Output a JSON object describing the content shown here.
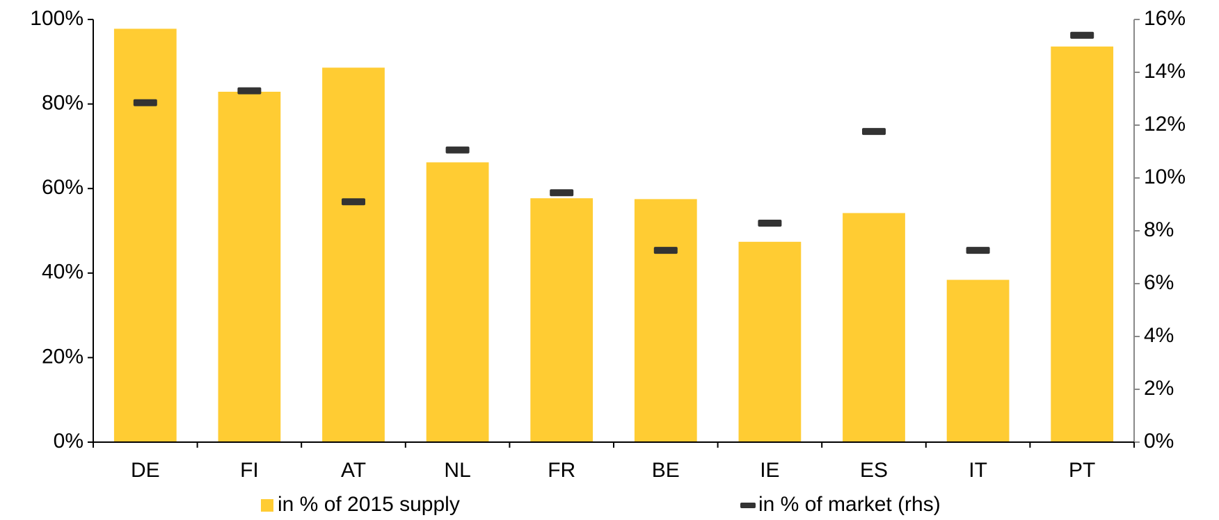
{
  "chart_data": {
    "type": "bar",
    "categories": [
      "DE",
      "FI",
      "AT",
      "NL",
      "FR",
      "BE",
      "IE",
      "ES",
      "IT",
      "PT"
    ],
    "series": [
      {
        "name": "in % of 2015 supply",
        "color": "#ffcc33",
        "values": [
          97.8,
          82.9,
          88.6,
          66.2,
          57.7,
          57.5,
          47.4,
          54.2,
          38.4,
          93.6
        ]
      },
      {
        "name": "in % of market (rhs)",
        "color": "#333333",
        "axis": "y2",
        "values": [
          12.85,
          13.3,
          9.1,
          11.06,
          9.44,
          7.26,
          8.29,
          11.76,
          7.26,
          15.4
        ]
      }
    ],
    "ylim": [
      0,
      100
    ],
    "yticks": [
      {
        "value": 0,
        "label": "0%"
      },
      {
        "value": 20,
        "label": "20%"
      },
      {
        "value": 40,
        "label": "40%"
      },
      {
        "value": 60,
        "label": "60%"
      },
      {
        "value": 80,
        "label": "80%"
      },
      {
        "value": 100,
        "label": "100%"
      }
    ],
    "y2lim": [
      0,
      16
    ],
    "y2ticks": [
      {
        "value": 0,
        "label": "0%"
      },
      {
        "value": 2,
        "label": "2%"
      },
      {
        "value": 4,
        "label": "4%"
      },
      {
        "value": 6,
        "label": "6%"
      },
      {
        "value": 8,
        "label": "8%"
      },
      {
        "value": 10,
        "label": "10%"
      },
      {
        "value": 12,
        "label": "12%"
      },
      {
        "value": 14,
        "label": "14%"
      },
      {
        "value": 16,
        "label": "16%"
      }
    ],
    "grid": false,
    "legend": "bottom"
  }
}
